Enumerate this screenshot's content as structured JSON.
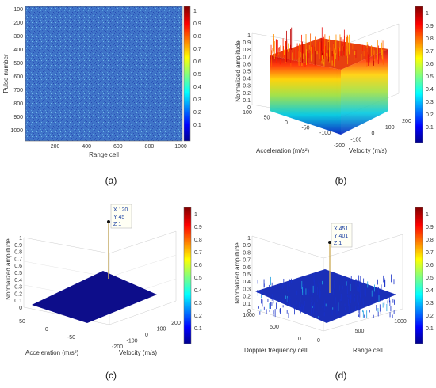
{
  "colorbar_ticks": [
    "1",
    "0.9",
    "0.8",
    "0.7",
    "0.6",
    "0.5",
    "0.4",
    "0.3",
    "0.2",
    "0.1"
  ],
  "colors": {
    "low": "#1a1aa0",
    "mid": "#20c8c0",
    "high": "#d01010",
    "axis": "#888888",
    "datatip_bg": "#fffff4",
    "datatip_border": "#bbbbbb"
  },
  "chart_data": [
    {
      "panel": "(a)",
      "type": "heatmap",
      "xlabel": "Range cell",
      "ylabel": "Pulse number",
      "x_ticks": [
        "200",
        "400",
        "600",
        "800",
        "1000"
      ],
      "y_ticks": [
        "100",
        "200",
        "300",
        "400",
        "500",
        "600",
        "700",
        "800",
        "900",
        "1000"
      ],
      "xlim": [
        1,
        1000
      ],
      "ylim": [
        1,
        1000
      ],
      "values_description_level": 0.3,
      "colorbar_range": [
        0,
        1
      ]
    },
    {
      "panel": "(b)",
      "type": "surface3d",
      "zlabel": "Normalized amplitude",
      "xlabel": "Acceleration (m/s²)",
      "ylabel": "Velocity (m/s)",
      "z_ticks": [
        "0",
        "0.1",
        "0.2",
        "0.3",
        "0.4",
        "0.5",
        "0.6",
        "0.7",
        "0.8",
        "0.9",
        "1"
      ],
      "x_ticks": [
        "100",
        "50",
        "0",
        "-50",
        "-100"
      ],
      "y_ticks": [
        "-200",
        "-100",
        "0",
        "100",
        "200"
      ],
      "zlim": [
        0,
        1
      ],
      "xlim": [
        -100,
        100
      ],
      "ylim": [
        -200,
        200
      ],
      "surface_level": 0.85
    },
    {
      "panel": "(c)",
      "type": "surface3d",
      "zlabel": "Normalized amplitude",
      "xlabel": "Acceleration (m/s²)",
      "ylabel": "Velocity (m/s)",
      "z_ticks": [
        "0",
        "0.1",
        "0.2",
        "0.3",
        "0.4",
        "0.5",
        "0.6",
        "0.7",
        "0.8",
        "0.9",
        "1"
      ],
      "x_ticks": [
        "50",
        "0",
        "-50"
      ],
      "y_ticks": [
        "-200",
        "-100",
        "0",
        "100",
        "200"
      ],
      "zlim": [
        0,
        1
      ],
      "peak": {
        "x": 120,
        "y": 45,
        "z": 1
      },
      "datatip": [
        "X 120",
        "Y 45",
        "Z 1"
      ],
      "floor_level": 0
    },
    {
      "panel": "(d)",
      "type": "surface3d",
      "zlabel": "Normalized amplitude",
      "xlabel": "Doppler frequency cell",
      "ylabel": "Range cell",
      "z_ticks": [
        "0",
        "0.1",
        "0.2",
        "0.3",
        "0.4",
        "0.5",
        "0.6",
        "0.7",
        "0.8",
        "0.9",
        "1"
      ],
      "x_ticks": [
        "1000",
        "500",
        "0"
      ],
      "y_ticks": [
        "0",
        "500",
        "1000"
      ],
      "zlim": [
        0,
        1
      ],
      "peak": {
        "x": 451,
        "y": 401,
        "z": 1
      },
      "datatip": [
        "X 451",
        "Y 401",
        "Z 1"
      ],
      "floor_level": 0.1
    }
  ]
}
